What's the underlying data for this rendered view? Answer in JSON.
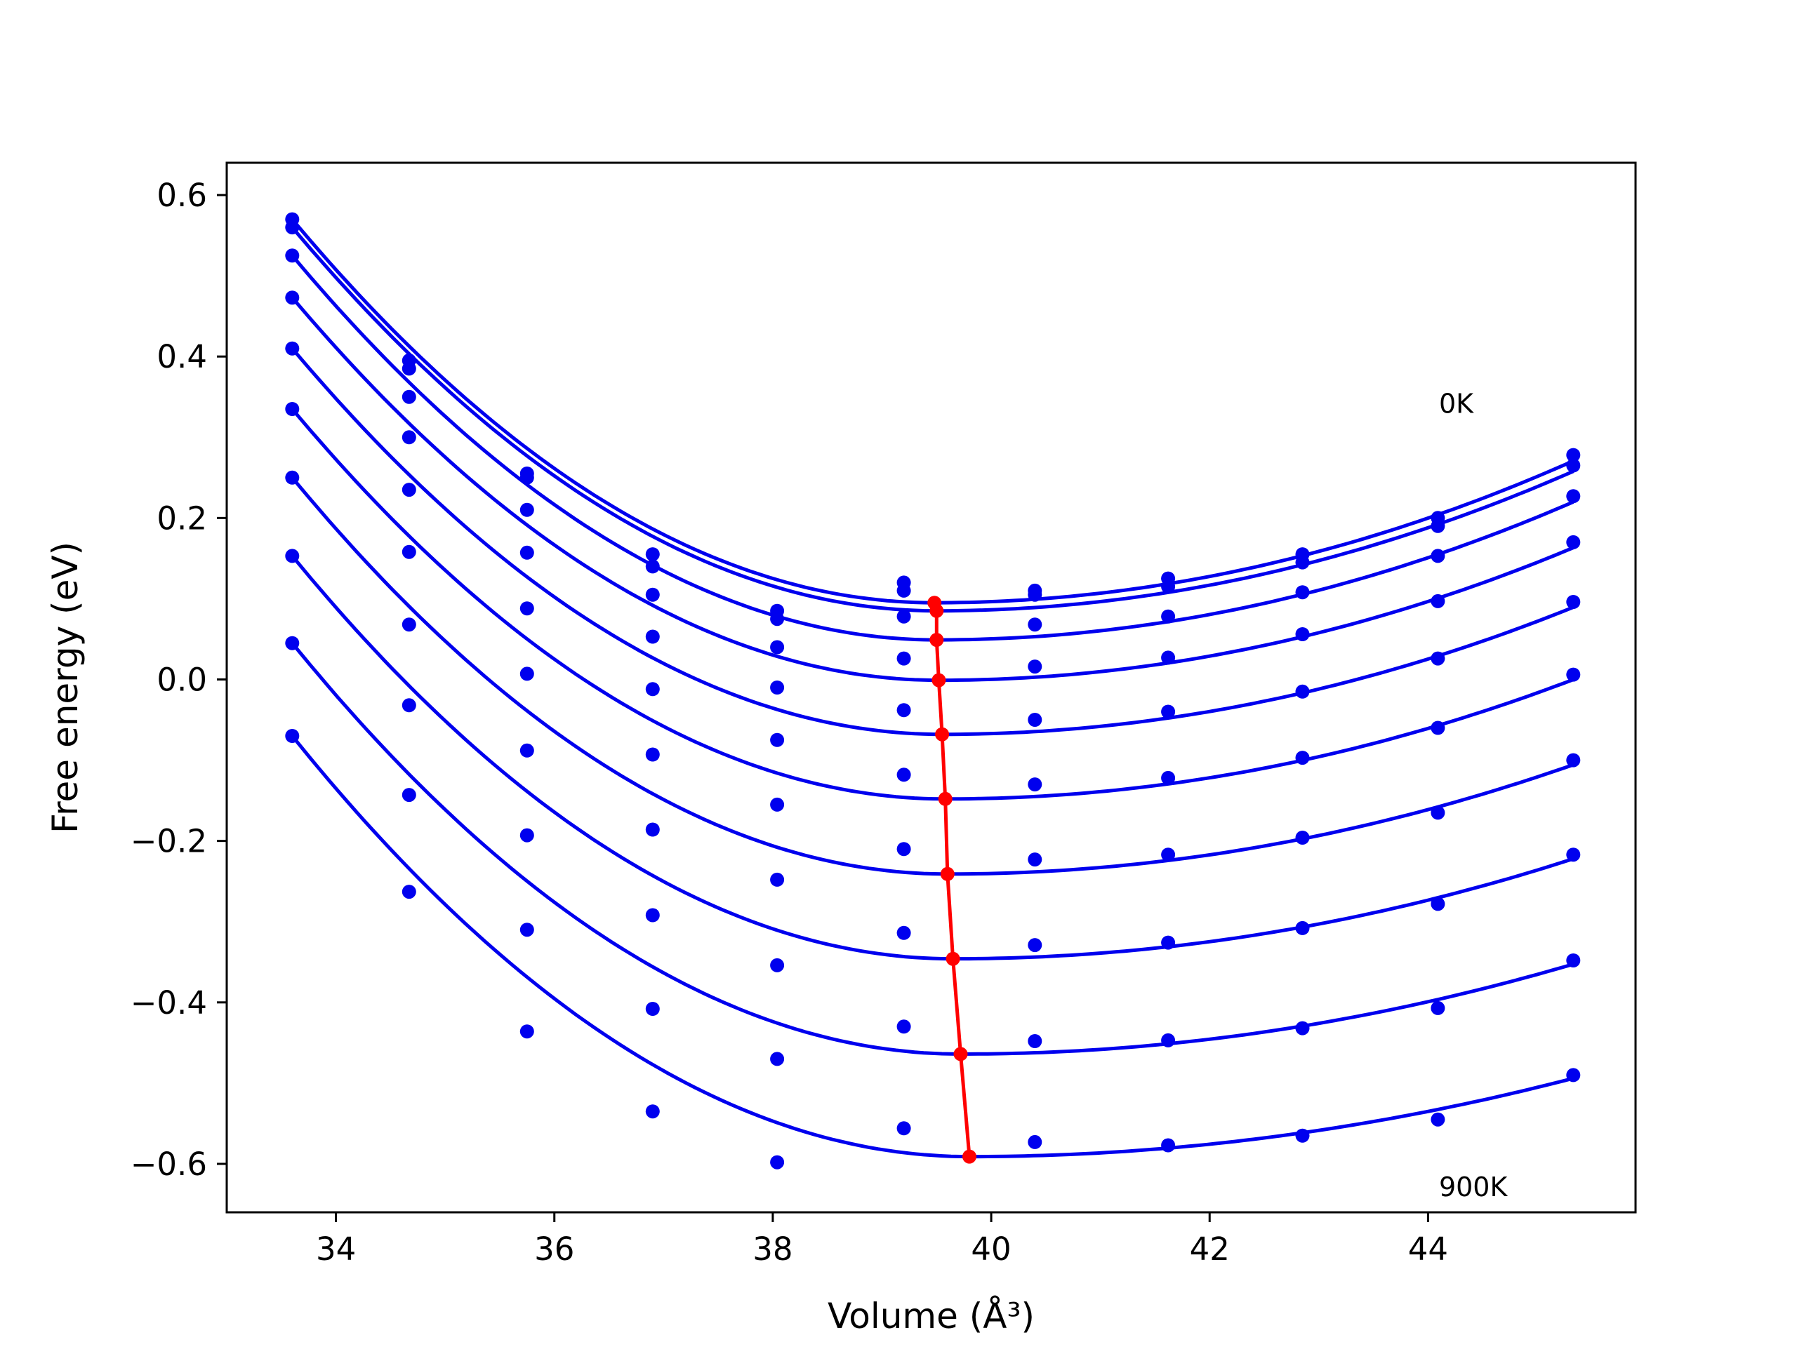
{
  "chart_data": {
    "type": "line",
    "title": "",
    "xlabel": "Volume (Å³)",
    "ylabel": "Free energy (eV)",
    "xlim": [
      33.0,
      45.9
    ],
    "ylim": [
      -0.66,
      0.64
    ],
    "xticks": [
      34,
      36,
      38,
      40,
      42,
      44
    ],
    "yticks": [
      -0.6,
      -0.4,
      -0.2,
      0.0,
      0.2,
      0.4,
      0.6
    ],
    "ytick_labels": [
      "−0.6",
      "−0.4",
      "−0.2",
      "0.0",
      "0.2",
      "0.4",
      "0.6"
    ],
    "grid": false,
    "legend": "none",
    "annotations": [
      {
        "text": "0K",
        "x": 44.1,
        "y": 0.33
      },
      {
        "text": "900K",
        "x": 44.1,
        "y": -0.64
      }
    ],
    "colors": {
      "points": "#0000ee",
      "fit": "#0000ee",
      "minimum_path": "#ff0000"
    },
    "x": [
      33.6,
      34.67,
      35.75,
      36.9,
      38.04,
      39.2,
      40.4,
      41.62,
      42.85,
      44.09,
      45.33
    ],
    "series": [
      {
        "values": [
          0.57,
          0.395,
          0.255,
          0.155,
          0.085,
          0.12,
          0.11,
          0.125,
          0.155,
          0.2,
          0.278
        ],
        "fit_min": [
          39.48,
          0.095
        ]
      },
      {
        "values": [
          0.56,
          0.385,
          0.25,
          0.14,
          0.075,
          0.11,
          0.105,
          0.115,
          0.145,
          0.19,
          0.265
        ],
        "fit_min": [
          39.5,
          0.085
        ]
      },
      {
        "values": [
          0.525,
          0.35,
          0.21,
          0.105,
          0.04,
          0.078,
          0.068,
          0.078,
          0.108,
          0.153,
          0.227
        ],
        "fit_min": [
          39.5,
          0.049
        ]
      },
      {
        "values": [
          0.473,
          0.3,
          0.157,
          0.053,
          -0.01,
          0.026,
          0.016,
          0.027,
          0.056,
          0.097,
          0.17
        ],
        "fit_min": [
          39.52,
          -0.001
        ]
      },
      {
        "values": [
          0.41,
          0.235,
          0.088,
          -0.012,
          -0.075,
          -0.038,
          -0.05,
          -0.04,
          -0.015,
          0.026,
          0.096
        ],
        "fit_min": [
          39.55,
          -0.068
        ]
      },
      {
        "values": [
          0.335,
          0.158,
          0.007,
          -0.093,
          -0.155,
          -0.118,
          -0.13,
          -0.122,
          -0.097,
          -0.06,
          0.006
        ],
        "fit_min": [
          39.58,
          -0.148
        ]
      },
      {
        "values": [
          0.25,
          0.068,
          -0.088,
          -0.186,
          -0.248,
          -0.21,
          -0.223,
          -0.217,
          -0.196,
          -0.165,
          -0.1
        ],
        "fit_min": [
          39.6,
          -0.241
        ]
      },
      {
        "values": [
          0.153,
          -0.032,
          -0.193,
          -0.292,
          -0.354,
          -0.314,
          -0.329,
          -0.326,
          -0.308,
          -0.278,
          -0.217
        ],
        "fit_min": [
          39.65,
          -0.346
        ]
      },
      {
        "values": [
          0.045,
          -0.143,
          -0.31,
          -0.408,
          -0.47,
          -0.43,
          -0.448,
          -0.447,
          -0.432,
          -0.407,
          -0.348
        ],
        "fit_min": [
          39.72,
          -0.464
        ]
      },
      {
        "values": [
          -0.07,
          -0.263,
          -0.436,
          -0.535,
          -0.598,
          -0.556,
          -0.573,
          -0.577,
          -0.565,
          -0.545,
          -0.49
        ],
        "fit_min": [
          39.8,
          -0.591
        ]
      }
    ],
    "minimum_path": {
      "x": [
        39.48,
        39.5,
        39.5,
        39.52,
        39.55,
        39.58,
        39.6,
        39.65,
        39.72,
        39.8
      ],
      "y": [
        0.095,
        0.085,
        0.049,
        -0.001,
        -0.068,
        -0.148,
        -0.241,
        -0.346,
        -0.464,
        -0.591
      ]
    }
  }
}
